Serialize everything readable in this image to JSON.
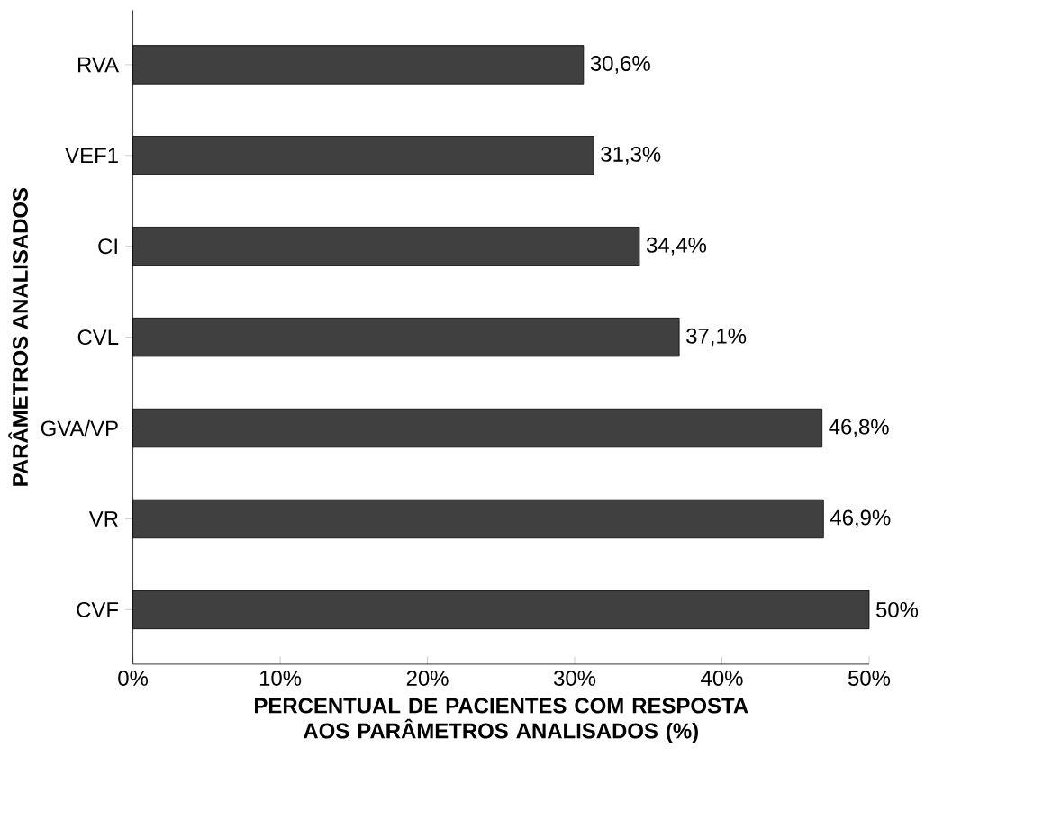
{
  "chart_data": {
    "type": "bar",
    "orientation": "horizontal",
    "categories": [
      "RVA",
      "VEF1",
      "CI",
      "CVL",
      "GVA/VP",
      "VR",
      "CVF"
    ],
    "values": [
      30.6,
      31.3,
      34.4,
      37.1,
      46.8,
      46.9,
      50
    ],
    "value_labels": [
      "30,6%",
      "31,3%",
      "34,4%",
      "37,1%",
      "46,8%",
      "46,9%",
      "50%"
    ],
    "color": "#404040",
    "xlim": [
      0,
      50
    ],
    "xticks": [
      {
        "value": 0,
        "label": "0%"
      },
      {
        "value": 10,
        "label": "10%"
      },
      {
        "value": 20,
        "label": "20%"
      },
      {
        "value": 30,
        "label": "30%"
      },
      {
        "value": 40,
        "label": "40%"
      },
      {
        "value": 50,
        "label": "50%"
      }
    ],
    "xlabel": "PERCENTUAL DE PACIENTES COM RESPOSTA AOS PARÂMETROS ANALISADOS (%)",
    "ylabel": "PARÂMETROS ANALISADOS",
    "grid": false
  }
}
